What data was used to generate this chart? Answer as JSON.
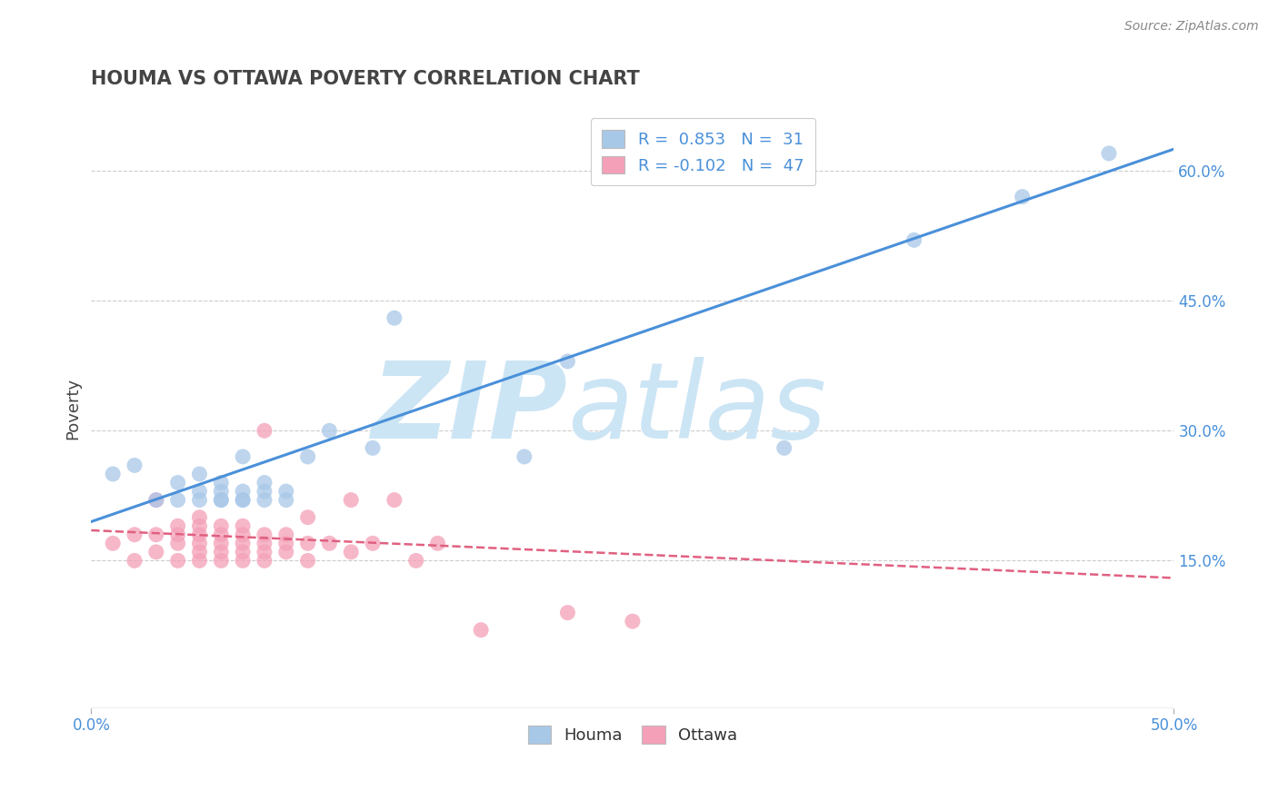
{
  "title": "HOUMA VS OTTAWA POVERTY CORRELATION CHART",
  "source": "Source: ZipAtlas.com",
  "ylabel_values": [
    0.15,
    0.3,
    0.45,
    0.6
  ],
  "xlim": [
    0.0,
    0.5
  ],
  "ylim": [
    -0.02,
    0.67
  ],
  "houma_R": 0.853,
  "houma_N": 31,
  "ottawa_R": -0.102,
  "ottawa_N": 47,
  "houma_color": "#a8c8e8",
  "houma_line_color": "#4a90d9",
  "ottawa_color": "#f4a0b8",
  "ottawa_line_color": "#e06080",
  "watermark_zip": "ZIP",
  "watermark_atlas": "atlas",
  "watermark_color": "#cce5f5",
  "background_color": "#ffffff",
  "title_color": "#444444",
  "axis_label_color": "#4a90d9",
  "houma_x": [
    0.01,
    0.02,
    0.03,
    0.04,
    0.04,
    0.05,
    0.05,
    0.05,
    0.06,
    0.06,
    0.06,
    0.06,
    0.07,
    0.07,
    0.07,
    0.07,
    0.08,
    0.08,
    0.08,
    0.09,
    0.09,
    0.1,
    0.11,
    0.13,
    0.14,
    0.2,
    0.22,
    0.32,
    0.38,
    0.43,
    0.47
  ],
  "houma_y": [
    0.25,
    0.26,
    0.22,
    0.22,
    0.24,
    0.22,
    0.23,
    0.25,
    0.22,
    0.22,
    0.23,
    0.24,
    0.22,
    0.22,
    0.23,
    0.27,
    0.22,
    0.23,
    0.24,
    0.22,
    0.23,
    0.27,
    0.3,
    0.28,
    0.43,
    0.27,
    0.38,
    0.28,
    0.52,
    0.57,
    0.62
  ],
  "ottawa_x": [
    0.01,
    0.02,
    0.02,
    0.03,
    0.03,
    0.03,
    0.04,
    0.04,
    0.04,
    0.04,
    0.05,
    0.05,
    0.05,
    0.05,
    0.05,
    0.05,
    0.06,
    0.06,
    0.06,
    0.06,
    0.06,
    0.07,
    0.07,
    0.07,
    0.07,
    0.07,
    0.08,
    0.08,
    0.08,
    0.08,
    0.08,
    0.09,
    0.09,
    0.09,
    0.1,
    0.1,
    0.1,
    0.11,
    0.12,
    0.12,
    0.13,
    0.14,
    0.15,
    0.16,
    0.18,
    0.22,
    0.25
  ],
  "ottawa_y": [
    0.17,
    0.15,
    0.18,
    0.16,
    0.18,
    0.22,
    0.15,
    0.17,
    0.18,
    0.19,
    0.15,
    0.16,
    0.17,
    0.18,
    0.19,
    0.2,
    0.15,
    0.16,
    0.17,
    0.18,
    0.19,
    0.15,
    0.16,
    0.17,
    0.18,
    0.19,
    0.15,
    0.16,
    0.17,
    0.18,
    0.3,
    0.16,
    0.17,
    0.18,
    0.15,
    0.17,
    0.2,
    0.17,
    0.16,
    0.22,
    0.17,
    0.22,
    0.15,
    0.17,
    0.07,
    0.09,
    0.08
  ],
  "houma_line_x0": 0.0,
  "houma_line_y0": 0.195,
  "houma_line_x1": 0.5,
  "houma_line_y1": 0.625,
  "ottawa_line_x0": 0.0,
  "ottawa_line_y0": 0.185,
  "ottawa_line_x1": 0.5,
  "ottawa_line_y1": 0.13
}
